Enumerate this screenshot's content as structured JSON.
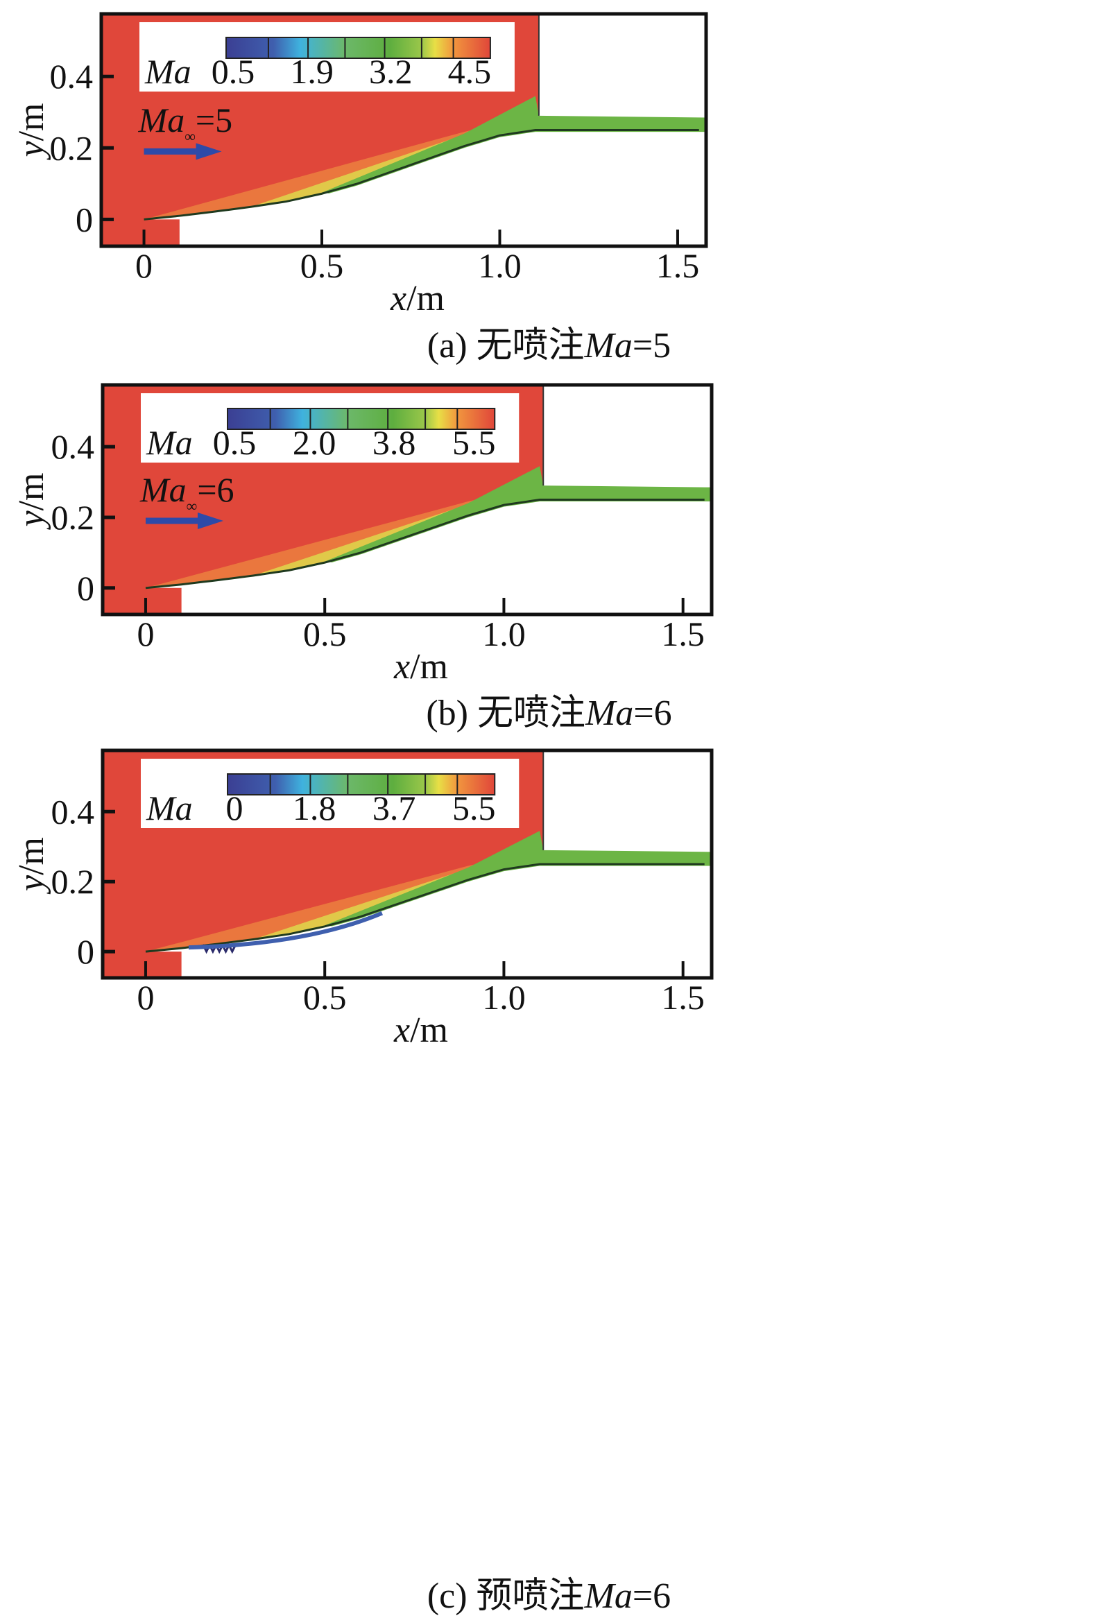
{
  "colors": {
    "freestream": "#e0473a",
    "compression": "#ea7a3e",
    "shear_yellow": "#dfd24a",
    "duct_green": "#6cb545",
    "arrow_blue": "#2e4aa8",
    "frame": "#111111"
  },
  "chart_data": [
    {
      "type": "heatmap",
      "title": "(a) 无喷注Ma=5",
      "caption_prefix": "(a) 无喷注",
      "caption_ma": "Ma",
      "caption_suffix": "=5",
      "xlabel_var": "x",
      "xlabel_unit": "/m",
      "ylabel_var": "y",
      "ylabel_unit": "/m",
      "xlim": [
        -0.12,
        1.58
      ],
      "ylim": [
        -0.075,
        0.575
      ],
      "xticks": [
        0,
        0.5,
        1.0,
        1.5
      ],
      "xtick_labels": [
        "0",
        "0.5",
        "1.0",
        "1.5"
      ],
      "yticks": [
        0,
        0.2,
        0.4
      ],
      "ytick_labels": [
        "0",
        "0.2",
        "0.4"
      ],
      "colorbar": {
        "label": "Ma",
        "tick_labels": [
          "0.5",
          "1.9",
          "3.2",
          "4.5"
        ],
        "min": 0.5,
        "max": 5.0
      },
      "freestream": {
        "label_var": "Ma",
        "label_sub": "∞",
        "label_val": "=5",
        "mach": 5
      },
      "injection": false
    },
    {
      "type": "heatmap",
      "title": "(b) 无喷注Ma=6",
      "caption_prefix": "(b) 无喷注",
      "caption_ma": "Ma",
      "caption_suffix": "=6",
      "xlabel_var": "x",
      "xlabel_unit": "/m",
      "ylabel_var": "y",
      "ylabel_unit": "/m",
      "xlim": [
        -0.12,
        1.58
      ],
      "ylim": [
        -0.075,
        0.575
      ],
      "xticks": [
        0,
        0.5,
        1.0,
        1.5
      ],
      "xtick_labels": [
        "0",
        "0.5",
        "1.0",
        "1.5"
      ],
      "yticks": [
        0,
        0.2,
        0.4
      ],
      "ytick_labels": [
        "0",
        "0.2",
        "0.4"
      ],
      "colorbar": {
        "label": "Ma",
        "tick_labels": [
          "0.5",
          "2.0",
          "3.8",
          "5.5"
        ],
        "min": 0.5,
        "max": 6.0
      },
      "freestream": {
        "label_var": "Ma",
        "label_sub": "∞",
        "label_val": "=6",
        "mach": 6
      },
      "injection": false
    },
    {
      "type": "heatmap",
      "title": "(c) 预喷注Ma=6",
      "caption_prefix": "(c) 预喷注",
      "caption_ma": "Ma",
      "caption_suffix": "=6",
      "xlabel_var": "x",
      "xlabel_unit": "/m",
      "ylabel_var": "y",
      "ylabel_unit": "/m",
      "xlim": [
        -0.12,
        1.58
      ],
      "ylim": [
        -0.075,
        0.575
      ],
      "xticks": [
        0,
        0.5,
        1.0,
        1.5
      ],
      "xtick_labels": [
        "0",
        "0.5",
        "1.0",
        "1.5"
      ],
      "yticks": [
        0,
        0.2,
        0.4
      ],
      "ytick_labels": [
        "0",
        "0.2",
        "0.4"
      ],
      "colorbar": {
        "label": "Ma",
        "tick_labels": [
          "0",
          "1.8",
          "3.7",
          "5.5"
        ],
        "min": 0,
        "max": 6.0
      },
      "freestream": null,
      "injection": true
    }
  ],
  "geometry_profile": {
    "ramp_x": [
      0,
      0.1,
      0.2,
      0.3,
      0.4,
      0.5,
      0.6,
      0.7,
      0.8,
      0.9,
      1.0,
      1.1,
      1.2,
      1.58
    ],
    "ramp_y": [
      0,
      0.01,
      0.022,
      0.035,
      0.05,
      0.072,
      0.1,
      0.135,
      0.17,
      0.205,
      0.235,
      0.25,
      0.25,
      0.25
    ],
    "cowl_lip_x": 1.11,
    "cowl_lip_y": 0.29,
    "duct_top_y": 0.285,
    "duct_bottom_y": 0.245,
    "forebody_step_x": 0.1
  }
}
